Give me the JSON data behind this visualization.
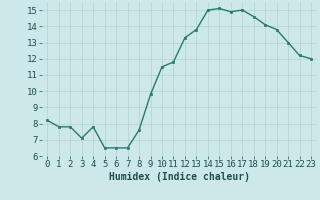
{
  "x": [
    0,
    1,
    2,
    3,
    4,
    5,
    6,
    7,
    8,
    9,
    10,
    11,
    12,
    13,
    14,
    15,
    16,
    17,
    18,
    19,
    20,
    21,
    22,
    23
  ],
  "y": [
    8.2,
    7.8,
    7.8,
    7.1,
    7.8,
    6.5,
    6.5,
    6.5,
    7.6,
    9.8,
    11.5,
    11.8,
    13.3,
    13.8,
    15.0,
    15.1,
    14.9,
    15.0,
    14.6,
    14.1,
    13.8,
    13.0,
    12.2,
    12.0
  ],
  "xlabel": "Humidex (Indice chaleur)",
  "xlim": [
    -0.5,
    23.5
  ],
  "ylim": [
    6,
    15.5
  ],
  "yticks": [
    6,
    7,
    8,
    9,
    10,
    11,
    12,
    13,
    14,
    15
  ],
  "xticks": [
    0,
    1,
    2,
    3,
    4,
    5,
    6,
    7,
    8,
    9,
    10,
    11,
    12,
    13,
    14,
    15,
    16,
    17,
    18,
    19,
    20,
    21,
    22,
    23
  ],
  "line_color": "#2a7a6a",
  "marker_color": "#2a7a6a",
  "bg_color": "#cce8e8",
  "grid_color": "#b8d4d4",
  "font_color": "#1a5050",
  "xlabel_fontsize": 7,
  "tick_fontsize": 6.5
}
